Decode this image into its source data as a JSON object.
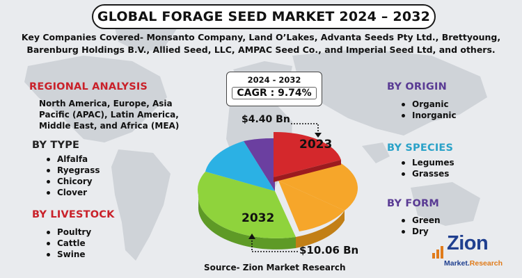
{
  "title": "GLOBAL FORAGE SEED MARKET 2024 – 2032",
  "companies": {
    "line1": "Key Companies Covered- Monsanto Company, Land O’Lakes, Advanta Seeds Pty Ltd., Brettyoung,",
    "line2": "Barenburg Holdings B.V., Allied Seed, LLC, AMPAC Seed Co., and Imperial Seed Ltd, and others."
  },
  "regional": {
    "heading": "REGIONAL ANALYSIS",
    "text": "North America, Europe, Asia Pacific (APAC), Latin America, Middle East, and Africa (MEA)"
  },
  "by_type": {
    "heading": "BY TYPE",
    "items": [
      "Alfalfa",
      "Ryegrass",
      "Chicory",
      "Clover"
    ]
  },
  "by_livestock": {
    "heading": "BY LIVESTOCK",
    "items": [
      "Poultry",
      "Cattle",
      "Swine"
    ]
  },
  "by_origin": {
    "heading": "BY ORIGIN",
    "items": [
      "Organic",
      "Inorganic"
    ]
  },
  "by_species": {
    "heading": "BY SPECIES",
    "items": [
      "Legumes",
      "Grasses"
    ]
  },
  "by_form": {
    "heading": "BY FORM",
    "items": [
      "Green",
      "Dry"
    ]
  },
  "cagr": {
    "years": "2024 - 2032",
    "value": "CAGR : 9.74%"
  },
  "values": {
    "start_value": "$4.40 Bn",
    "start_year": "2023",
    "end_value": "$10.06 Bn",
    "end_year": "2032"
  },
  "source": "Source- Zion Market Research",
  "logo": {
    "name": "Zion",
    "sub_left": "Market.",
    "sub_right": "Research"
  },
  "colors": {
    "red": "#d4282c",
    "orange": "#f6a62a",
    "green": "#8fd33c",
    "blue": "#2bb1e4",
    "purple": "#6b3fa0",
    "heading_red": "#c9212a",
    "heading_purple": "#5a3b94",
    "heading_teal": "#2aa2c8"
  }
}
